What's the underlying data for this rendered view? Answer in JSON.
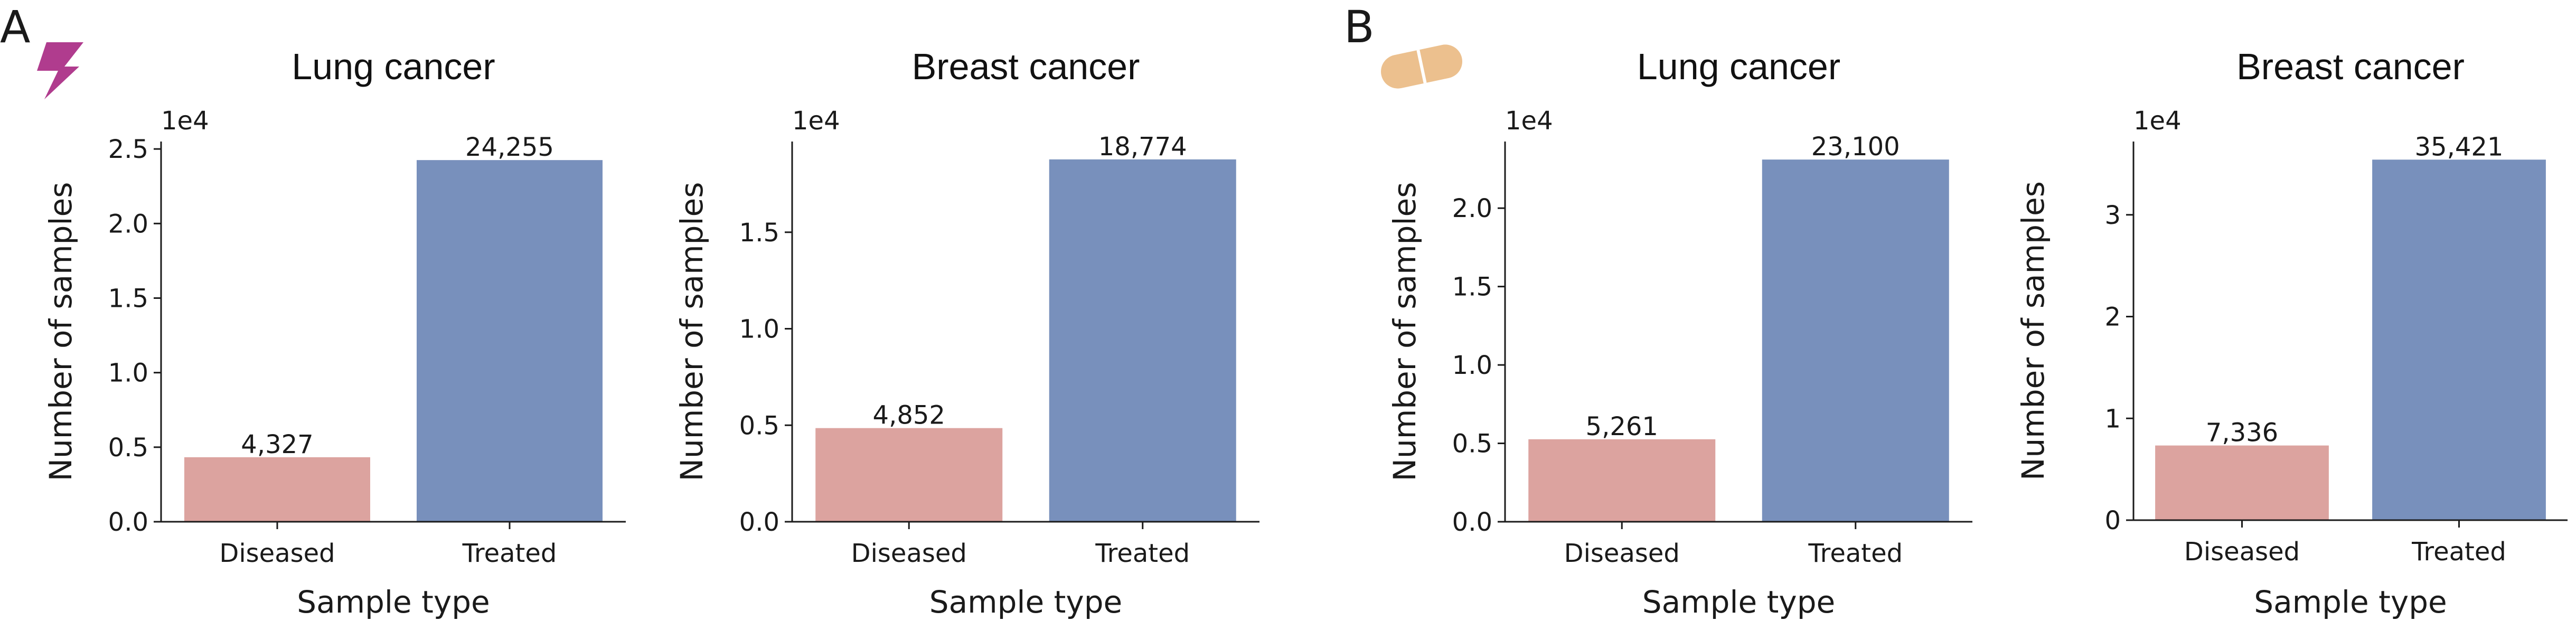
{
  "panels": [
    {
      "letter": "A",
      "icon": "lightning-bolt-icon",
      "icon_color": "#b03c8e"
    },
    {
      "letter": "B",
      "icon": "pill-capsule-icon",
      "icon_color": "#ecc08e"
    }
  ],
  "colors": {
    "diseased": "#dca39f",
    "treated": "#7890bc"
  },
  "chart_data": [
    {
      "type": "bar",
      "panel": "A",
      "title": "Lung cancer",
      "xlabel": "Sample type",
      "ylabel": "Number of samples",
      "offset_label": "1e4",
      "categories": [
        "Diseased",
        "Treated"
      ],
      "values": [
        4327,
        24255
      ],
      "value_labels": [
        "4,327",
        "24,255"
      ],
      "ylim": [
        0,
        25500
      ],
      "yticks": [
        0,
        5000,
        10000,
        15000,
        20000,
        25000
      ],
      "ytick_labels": [
        "0.0",
        "0.5",
        "1.0",
        "1.5",
        "2.0",
        "2.5"
      ],
      "grid": false
    },
    {
      "type": "bar",
      "panel": "A",
      "title": "Breast cancer",
      "xlabel": "Sample type",
      "ylabel": "Number of samples",
      "offset_label": "1e4",
      "categories": [
        "Diseased",
        "Treated"
      ],
      "values": [
        4852,
        18774
      ],
      "value_labels": [
        "4,852",
        "18,774"
      ],
      "ylim": [
        0,
        19700
      ],
      "yticks": [
        0,
        5000,
        10000,
        15000
      ],
      "ytick_labels": [
        "0.0",
        "0.5",
        "1.0",
        "1.5"
      ],
      "grid": false
    },
    {
      "type": "bar",
      "panel": "B",
      "title": "Lung cancer",
      "xlabel": "Sample type",
      "ylabel": "Number of samples",
      "offset_label": "1e4",
      "categories": [
        "Diseased",
        "Treated"
      ],
      "values": [
        5261,
        23100
      ],
      "value_labels": [
        "5,261",
        "23,100"
      ],
      "ylim": [
        0,
        24250
      ],
      "yticks": [
        0,
        5000,
        10000,
        15000,
        20000
      ],
      "ytick_labels": [
        "0.0",
        "0.5",
        "1.0",
        "1.5",
        "2.0"
      ],
      "grid": false
    },
    {
      "type": "bar",
      "panel": "B",
      "title": "Breast cancer",
      "xlabel": "Sample type",
      "ylabel": "Number of samples",
      "offset_label": "1e4",
      "categories": [
        "Diseased",
        "Treated"
      ],
      "values": [
        7336,
        35421
      ],
      "value_labels": [
        "7,336",
        "35,421"
      ],
      "ylim": [
        0,
        37200
      ],
      "yticks": [
        0,
        10000,
        20000,
        30000
      ],
      "ytick_labels": [
        "0",
        "1",
        "2",
        "3"
      ],
      "grid": false
    }
  ]
}
